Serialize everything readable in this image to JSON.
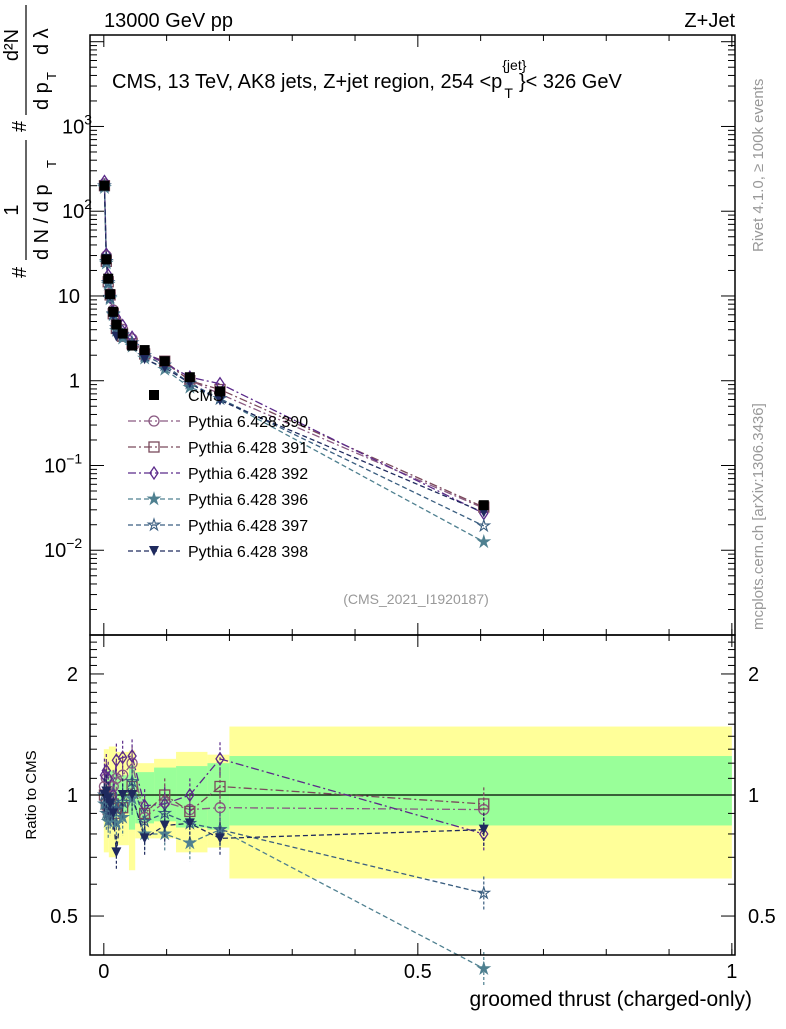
{
  "chart_data": {
    "type": "line",
    "header_left": "13000 GeV pp",
    "header_right": "Z+Jet",
    "title": "CMS, 13 TeV, AK8 jets, Z+jet region, 254 <p",
    "title_sup": "{jet}",
    "title_sub": "T",
    "title_end": "}< 326 GeV",
    "ylabel_parts": [
      "1",
      "#",
      "d N / d p",
      "T",
      "#",
      "d²N",
      "d p",
      "T",
      "d λ"
    ],
    "xlabel": "groomed thrust (charged-only)",
    "ratio_ylabel": "Ratio to CMS",
    "analysis_tag": "(CMS_2021_I1920187)",
    "side_text_1": "Rivet 4.1.0, ≥ 100k events",
    "side_text_2": "mcplots.cern.ch [arXiv:1306.3436]",
    "xlim": [
      -0.022,
      1.005
    ],
    "ylim_log": [
      0.001,
      12000
    ],
    "ratio_ylim_log": [
      0.4,
      2.5
    ],
    "xticks": [
      {
        "v": 0,
        "label": "0"
      },
      {
        "v": 0.5,
        "label": "0.5"
      },
      {
        "v": 1,
        "label": "1"
      }
    ],
    "yticks": [
      {
        "v": 0.01,
        "base": "10",
        "exp": "−2"
      },
      {
        "v": 0.1,
        "base": "10",
        "exp": "−1"
      },
      {
        "v": 1,
        "base": "1",
        "exp": ""
      },
      {
        "v": 10,
        "base": "10",
        "exp": ""
      },
      {
        "v": 100,
        "base": "10",
        "exp": "2"
      },
      {
        "v": 1000,
        "base": "10",
        "exp": "3"
      }
    ],
    "ratio_yticks": [
      {
        "v": 0.5,
        "label": "0.5"
      },
      {
        "v": 1,
        "label": "1"
      },
      {
        "v": 2,
        "label": "2"
      }
    ],
    "x": [
      0.001,
      0.004,
      0.007,
      0.01,
      0.015,
      0.02,
      0.03,
      0.045,
      0.065,
      0.097,
      0.137,
      0.185,
      0.605
    ],
    "data": {
      "name": "CMS",
      "color": "#000000",
      "values": [
        200,
        27,
        16,
        10.5,
        6.5,
        4.6,
        3.6,
        2.6,
        2.3,
        1.7,
        1.1,
        0.75,
        0.034
      ]
    },
    "bands": {
      "edges": [
        0,
        0.008,
        0.02,
        0.04,
        0.05,
        0.08,
        0.115,
        0.165,
        0.2,
        1.0
      ],
      "yellow": [
        [
          0.72,
          1.3
        ],
        [
          0.7,
          1.32
        ],
        [
          0.75,
          1.28
        ],
        [
          0.65,
          1.29
        ],
        [
          0.78,
          1.2
        ],
        [
          0.78,
          1.23
        ],
        [
          0.72,
          1.28
        ],
        [
          0.74,
          1.26
        ],
        [
          0.62,
          1.48
        ]
      ],
      "green": [
        [
          0.86,
          1.15
        ],
        [
          0.86,
          1.15
        ],
        [
          0.9,
          1.12
        ],
        [
          0.82,
          1.18
        ],
        [
          0.85,
          1.14
        ],
        [
          0.86,
          1.17
        ],
        [
          0.83,
          1.18
        ],
        [
          0.82,
          1.2
        ],
        [
          0.84,
          1.25
        ]
      ],
      "yellow_color": "#ffff99",
      "green_color": "#99ff99"
    },
    "series": [
      {
        "name": "Pythia 6.428 390",
        "color": "#8a5a82",
        "marker": "circle-open",
        "dash": "8,3,2,3",
        "ratio": [
          1.05,
          1.1,
          0.98,
          1.02,
          1.05,
          1.1,
          1.12,
          1.2,
          0.88,
          0.96,
          0.92,
          0.93,
          0.92
        ]
      },
      {
        "name": "Pythia 6.428 391",
        "color": "#7a4a5c",
        "marker": "square-open",
        "dash": "8,3,2,3",
        "ratio": [
          1.0,
          0.95,
          0.92,
          0.98,
          0.95,
          0.9,
          0.93,
          1.05,
          0.9,
          1.0,
          0.91,
          1.05,
          0.95
        ]
      },
      {
        "name": "Pythia 6.428 392",
        "color": "#5b2a8a",
        "marker": "diamond-open",
        "dash": "8,3,2,3",
        "ratio": [
          1.12,
          1.15,
          1.1,
          0.92,
          1.0,
          1.22,
          1.24,
          1.25,
          0.94,
          0.95,
          1.0,
          1.23,
          0.8
        ]
      },
      {
        "name": "Pythia 6.428 396",
        "color": "#4f8090",
        "marker": "star-filled",
        "dash": "5,3",
        "ratio": [
          0.95,
          0.9,
          0.86,
          0.88,
          0.92,
          0.85,
          0.88,
          0.98,
          0.8,
          0.8,
          0.76,
          0.82,
          0.37
        ]
      },
      {
        "name": "Pythia 6.428 397",
        "color": "#3a5e80",
        "marker": "star-open",
        "dash": "5,3",
        "ratio": [
          1.0,
          0.95,
          0.9,
          0.92,
          0.95,
          0.92,
          0.96,
          1.08,
          0.86,
          0.9,
          0.85,
          0.82,
          0.57
        ]
      },
      {
        "name": "Pythia 6.428 398",
        "color": "#1f2a5e",
        "marker": "triangle-down-filled",
        "dash": "5,3",
        "ratio": [
          1.0,
          1.02,
          0.98,
          0.95,
          0.9,
          0.72,
          1.0,
          1.0,
          0.78,
          0.84,
          0.85,
          0.78,
          0.82
        ]
      }
    ]
  }
}
